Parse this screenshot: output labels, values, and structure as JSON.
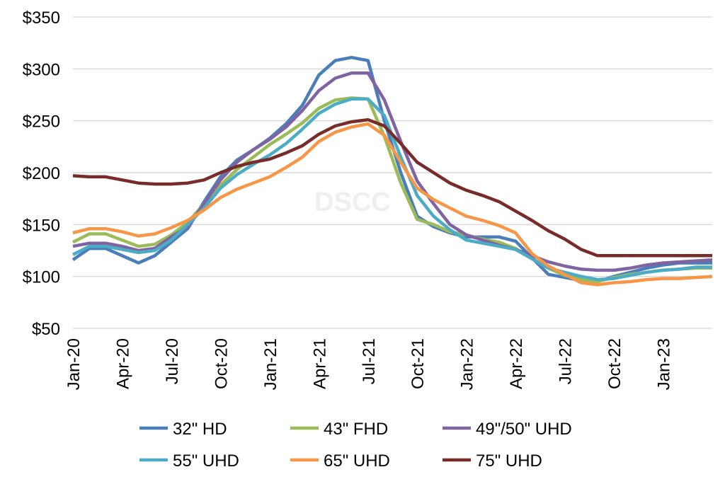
{
  "chart_data": {
    "type": "line",
    "title": "",
    "xlabel": "",
    "ylabel": "",
    "ylim": [
      50,
      350
    ],
    "yticks": [
      "$50",
      "$100",
      "$150",
      "$200",
      "$250",
      "$300",
      "$350"
    ],
    "ytick_values": [
      50,
      100,
      150,
      200,
      250,
      300,
      350
    ],
    "grid": true,
    "legend_position": "bottom",
    "watermark": "DSCC",
    "x": [
      "Jan-20",
      "Feb-20",
      "Mar-20",
      "Apr-20",
      "May-20",
      "Jun-20",
      "Jul-20",
      "Aug-20",
      "Sep-20",
      "Oct-20",
      "Nov-20",
      "Dec-20",
      "Jan-21",
      "Feb-21",
      "Mar-21",
      "Apr-21",
      "May-21",
      "Jun-21",
      "Jul-21",
      "Aug-21",
      "Sep-21",
      "Oct-21",
      "Nov-21",
      "Dec-21",
      "Jan-22",
      "Feb-22",
      "Mar-22",
      "Apr-22",
      "May-22",
      "Jun-22",
      "Jul-22",
      "Aug-22",
      "Sep-22",
      "Oct-22",
      "Nov-22",
      "Dec-22",
      "Jan-23",
      "Feb-23",
      "Mar-23",
      "Apr-23"
    ],
    "xtick_labels": [
      "Jan-20",
      "Apr-20",
      "Jul-20",
      "Oct-20",
      "Jan-21",
      "Apr-21",
      "Jul-21",
      "Oct-21",
      "Jan-22",
      "Apr-22",
      "Jul-22",
      "Oct-22",
      "Jan-23"
    ],
    "series": [
      {
        "name": "32\" HD",
        "color": "#4a7ebb",
        "values": [
          116,
          127,
          127,
          120,
          113,
          120,
          133,
          146,
          172,
          196,
          212,
          222,
          233,
          247,
          265,
          294,
          308,
          311,
          308,
          250,
          200,
          158,
          148,
          142,
          138,
          138,
          138,
          134,
          118,
          102,
          99,
          96,
          95,
          100,
          104,
          108,
          111,
          113,
          113,
          113
        ]
      },
      {
        "name": "43\" FHD",
        "color": "#9bbb59",
        "values": [
          133,
          141,
          141,
          135,
          129,
          131,
          140,
          152,
          170,
          188,
          203,
          215,
          227,
          237,
          248,
          262,
          270,
          272,
          271,
          235,
          190,
          155,
          150,
          143,
          140,
          136,
          133,
          127,
          117,
          108,
          101,
          97,
          95,
          99,
          102,
          104,
          106,
          107,
          108,
          108
        ]
      },
      {
        "name": "49\"/50\" UHD",
        "color": "#8064a2",
        "values": [
          129,
          132,
          132,
          129,
          125,
          127,
          138,
          148,
          170,
          193,
          210,
          222,
          232,
          244,
          260,
          279,
          291,
          296,
          296,
          270,
          230,
          192,
          170,
          150,
          140,
          135,
          130,
          126,
          120,
          114,
          110,
          107,
          106,
          106,
          108,
          111,
          113,
          114,
          115,
          116
        ]
      },
      {
        "name": "55\" UHD",
        "color": "#4bacc6",
        "values": [
          121,
          129,
          129,
          126,
          123,
          125,
          135,
          150,
          166,
          185,
          198,
          208,
          217,
          228,
          242,
          257,
          266,
          271,
          271,
          255,
          215,
          178,
          158,
          145,
          135,
          132,
          129,
          126,
          117,
          108,
          104,
          100,
          97,
          98,
          101,
          104,
          106,
          107,
          109,
          109
        ]
      },
      {
        "name": "65\" UHD",
        "color": "#f79646",
        "values": [
          142,
          146,
          146,
          143,
          139,
          141,
          147,
          154,
          164,
          176,
          184,
          190,
          196,
          205,
          215,
          230,
          239,
          244,
          247,
          236,
          210,
          185,
          174,
          166,
          158,
          154,
          149,
          142,
          122,
          110,
          102,
          94,
          92,
          94,
          95,
          97,
          98,
          98,
          99,
          100
        ]
      },
      {
        "name": "75\" UHD",
        "color": "#772c2a",
        "values": [
          197,
          196,
          196,
          193,
          190,
          189,
          189,
          190,
          193,
          200,
          206,
          210,
          213,
          219,
          226,
          237,
          245,
          249,
          251,
          245,
          228,
          210,
          200,
          190,
          183,
          178,
          172,
          163,
          154,
          144,
          136,
          126,
          120,
          120,
          120,
          120,
          120,
          120,
          120,
          120
        ]
      }
    ]
  }
}
